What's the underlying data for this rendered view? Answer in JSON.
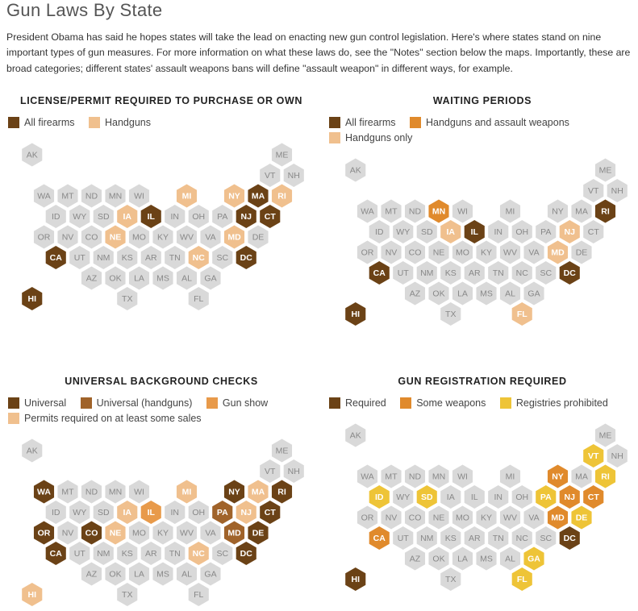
{
  "page": {
    "title": "Gun Laws By State",
    "intro": "President Obama has said he hopes states will take the lead on enacting new gun control legislation. Here's where states stand on nine important types of gun measures. For more information on what these laws do, see the \"Notes\" section below the maps. Importantly, these are broad categories; different states' assault weapons bans will define \"assault weapon\" in different ways, for example."
  },
  "colors": {
    "none": "#d9d9d9",
    "dark": "#6b4216",
    "medium": "#e08a2c",
    "light": "#f0c08e",
    "yellow": "#eec437",
    "brown_mid": "#a0632a",
    "amber": "#e89a4a",
    "label_light": "#ffffff",
    "label_dark": "#888888"
  },
  "chart_data": [
    {
      "type": "hex-tile-map",
      "title": "LICENSE/PERMIT REQUIRED TO PURCHASE OR OWN",
      "legend": [
        {
          "key": "all",
          "label": "All firearms",
          "color": "#6b4216"
        },
        {
          "key": "hand",
          "label": "Handguns",
          "color": "#f0c08e"
        }
      ],
      "states": {
        "MA": "all",
        "NJ": "all",
        "CT": "all",
        "IL": "all",
        "CA": "all",
        "DC": "all",
        "HI": "all",
        "MI": "hand",
        "NY": "hand",
        "RI": "hand",
        "IA": "hand",
        "NE": "hand",
        "MD": "hand",
        "NC": "hand"
      }
    },
    {
      "type": "hex-tile-map",
      "title": "WAITING PERIODS",
      "legend": [
        {
          "key": "all",
          "label": "All firearms",
          "color": "#6b4216"
        },
        {
          "key": "hand_assault",
          "label": "Handguns and assault weapons",
          "color": "#e08a2c"
        },
        {
          "key": "hand",
          "label": "Handguns only",
          "color": "#f0c08e"
        }
      ],
      "states": {
        "RI": "all",
        "IL": "all",
        "CA": "all",
        "DC": "all",
        "HI": "all",
        "MN": "hand_assault",
        "IA": "hand",
        "NJ": "hand",
        "MD": "hand",
        "FL": "hand"
      }
    },
    {
      "type": "hex-tile-map",
      "title": "UNIVERSAL BACKGROUND CHECKS",
      "legend": [
        {
          "key": "universal",
          "label": "Universal",
          "color": "#6b4216"
        },
        {
          "key": "universal_hand",
          "label": "Universal (handguns)",
          "color": "#a0632a"
        },
        {
          "key": "gunshow",
          "label": "Gun show",
          "color": "#e89a4a"
        },
        {
          "key": "permits",
          "label": "Permits required on at least some sales",
          "color": "#f0c08e"
        }
      ],
      "states": {
        "WA": "universal",
        "NY": "universal",
        "RI": "universal",
        "CT": "universal",
        "OR": "universal",
        "CO": "universal",
        "DE": "universal",
        "CA": "universal",
        "DC": "universal",
        "MD": "universal_hand",
        "PA": "universal_hand",
        "IL": "gunshow",
        "MI": "permits",
        "MA": "permits",
        "IA": "permits",
        "NJ": "permits",
        "NE": "permits",
        "NC": "permits",
        "HI": "permits"
      }
    },
    {
      "type": "hex-tile-map",
      "title": "GUN REGISTRATION REQUIRED",
      "legend": [
        {
          "key": "req",
          "label": "Required",
          "color": "#6b4216"
        },
        {
          "key": "some",
          "label": "Some weapons",
          "color": "#e08a2c"
        },
        {
          "key": "prohib",
          "label": "Registries prohibited",
          "color": "#eec437"
        }
      ],
      "states": {
        "DC": "req",
        "HI": "req",
        "NY": "some",
        "NJ": "some",
        "CT": "some",
        "MD": "some",
        "CA": "some",
        "VT": "prohib",
        "RI": "prohib",
        "ID": "prohib",
        "SD": "prohib",
        "PA": "prohib",
        "DE": "prohib",
        "GA": "prohib",
        "FL": "prohib"
      }
    }
  ]
}
